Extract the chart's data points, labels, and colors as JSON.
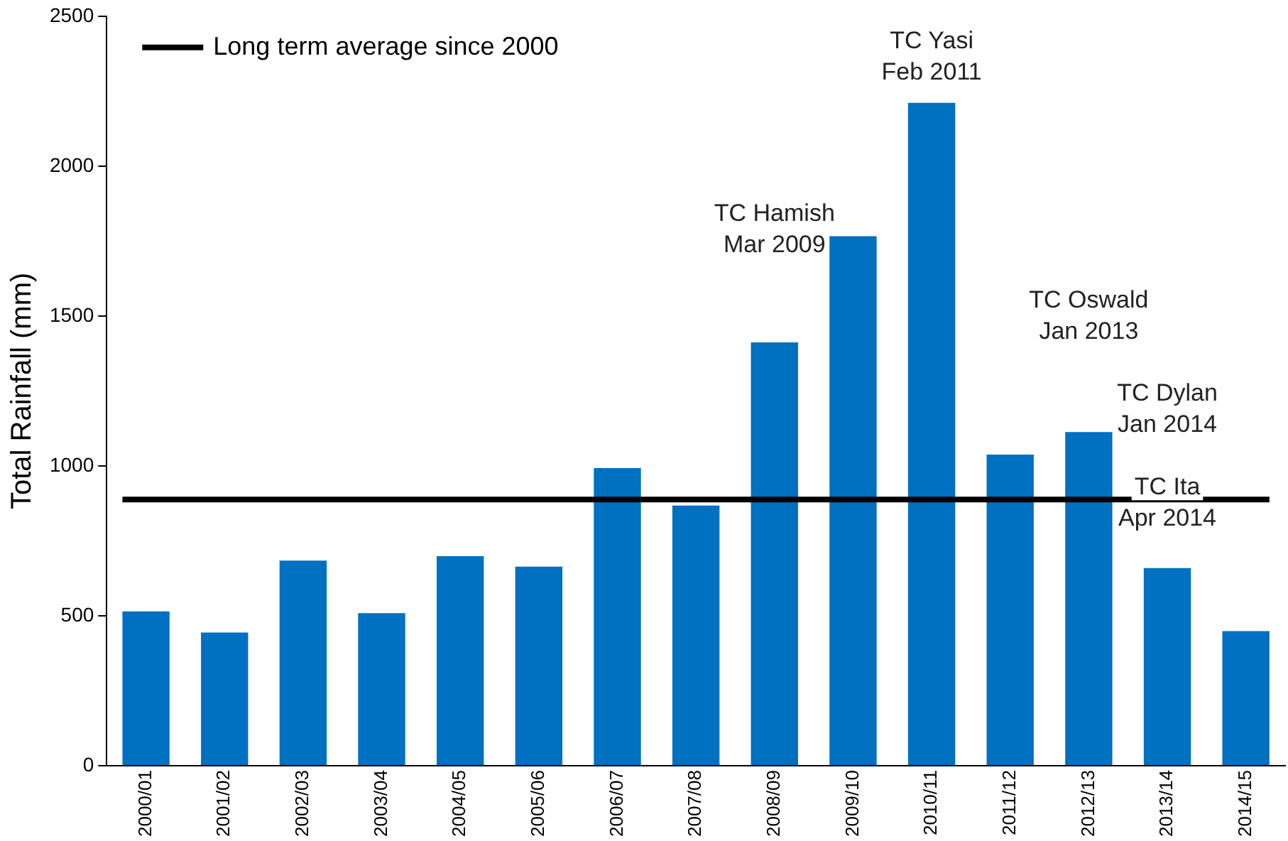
{
  "chart_data": {
    "type": "bar",
    "ylabel": "Total Rainfall (mm)",
    "categories": [
      "2000/01",
      "2001/02",
      "2002/03",
      "2003/04",
      "2004/05",
      "2005/06",
      "2006/07",
      "2007/08",
      "2008/09",
      "2009/10",
      "2010/11",
      "2011/12",
      "2012/13",
      "2013/14",
      "2014/15"
    ],
    "values": [
      515,
      444,
      684,
      509,
      699,
      664,
      993,
      868,
      1412,
      1766,
      2211,
      1038,
      1113,
      659,
      449
    ],
    "color": "#0070c0",
    "ylim": [
      0,
      2500
    ],
    "yticks": [
      0,
      500,
      1000,
      1500,
      2000,
      2500
    ],
    "grid": false,
    "ref_lines": [
      {
        "axis": "y",
        "value": 888,
        "label": "Long term average since 2000",
        "color": "#000000"
      }
    ],
    "annotations": [
      "TC Hamish\nMar 2009",
      "TC Yasi\nFeb 2011",
      "TC Oswald\nJan 2013",
      "TC Dylan\nJan 2014",
      "TC Ita\nApr 2014"
    ]
  }
}
